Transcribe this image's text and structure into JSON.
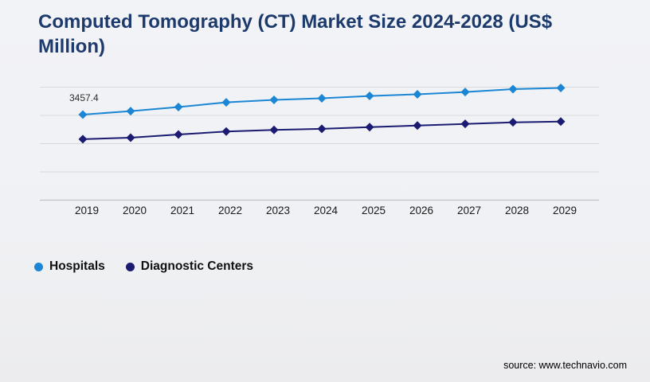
{
  "header": {
    "title": "Computed Tomography (CT) Market Size 2024-2028 (US$ Million)"
  },
  "chart_data": {
    "type": "line",
    "title": "Computed Tomography (CT) Market Size 2024-2028 (US$ Million)",
    "categories": [
      "2019",
      "2020",
      "2021",
      "2022",
      "2023",
      "2024",
      "2025",
      "2026",
      "2027",
      "2028",
      "2029"
    ],
    "series": [
      {
        "name": "Hospitals",
        "color": "#1b86d3",
        "marker": "diamond",
        "values": [
          3457.4,
          3600,
          3765,
          3955,
          4055,
          4120,
          4215,
          4280,
          4375,
          4490,
          4540
        ]
      },
      {
        "name": "Diagnostic Centers",
        "color": "#1b1b72",
        "marker": "diamond",
        "values": [
          2460,
          2520,
          2650,
          2770,
          2835,
          2880,
          2950,
          3015,
          3080,
          3145,
          3175
        ]
      }
    ],
    "data_labels": [
      {
        "series": "Hospitals",
        "category": "2019",
        "text": "3457.4"
      }
    ],
    "xlabel": "",
    "ylabel": "",
    "ylim": [
      0,
      4975
    ],
    "grid": true,
    "legend_position": "bottom",
    "gridline_color": "#d9d9dc",
    "axisline_color": "#c3c3c7"
  },
  "footer": {
    "source": "source: www.technavio.com"
  }
}
